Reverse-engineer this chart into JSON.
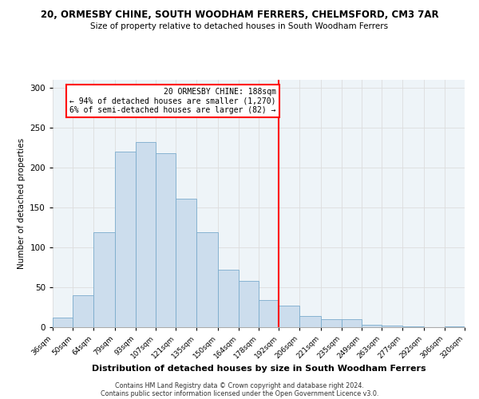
{
  "title": "20, ORMESBY CHINE, SOUTH WOODHAM FERRERS, CHELMSFORD, CM3 7AR",
  "subtitle": "Size of property relative to detached houses in South Woodham Ferrers",
  "xlabel": "Distribution of detached houses by size in South Woodham Ferrers",
  "ylabel": "Number of detached properties",
  "footer1": "Contains HM Land Registry data © Crown copyright and database right 2024.",
  "footer2": "Contains public sector information licensed under the Open Government Licence v3.0.",
  "bin_labels": [
    "36sqm",
    "50sqm",
    "64sqm",
    "79sqm",
    "93sqm",
    "107sqm",
    "121sqm",
    "135sqm",
    "150sqm",
    "164sqm",
    "178sqm",
    "192sqm",
    "206sqm",
    "221sqm",
    "235sqm",
    "249sqm",
    "263sqm",
    "277sqm",
    "292sqm",
    "306sqm",
    "320sqm"
  ],
  "bar_heights": [
    12,
    40,
    119,
    220,
    232,
    218,
    161,
    119,
    72,
    58,
    34,
    27,
    14,
    10,
    10,
    3,
    2,
    1,
    0,
    1
  ],
  "bar_color": "#ccdded",
  "bar_edge_color": "#7aabcc",
  "vline_color": "red",
  "annotation_title": "20 ORMESBY CHINE: 188sqm",
  "annotation_line1": "← 94% of detached houses are smaller (1,270)",
  "annotation_line2": "6% of semi-detached houses are larger (82) →",
  "annotation_box_color": "#ffffff",
  "annotation_box_edge": "red",
  "ylim": [
    0,
    310
  ],
  "yticks": [
    0,
    50,
    100,
    150,
    200,
    250,
    300
  ],
  "bin_edges": [
    36,
    50,
    64,
    79,
    93,
    107,
    121,
    135,
    150,
    164,
    178,
    192,
    206,
    221,
    235,
    249,
    263,
    277,
    292,
    306,
    320
  ],
  "grid_color": "#dddddd",
  "background_color": "#eef4f8"
}
